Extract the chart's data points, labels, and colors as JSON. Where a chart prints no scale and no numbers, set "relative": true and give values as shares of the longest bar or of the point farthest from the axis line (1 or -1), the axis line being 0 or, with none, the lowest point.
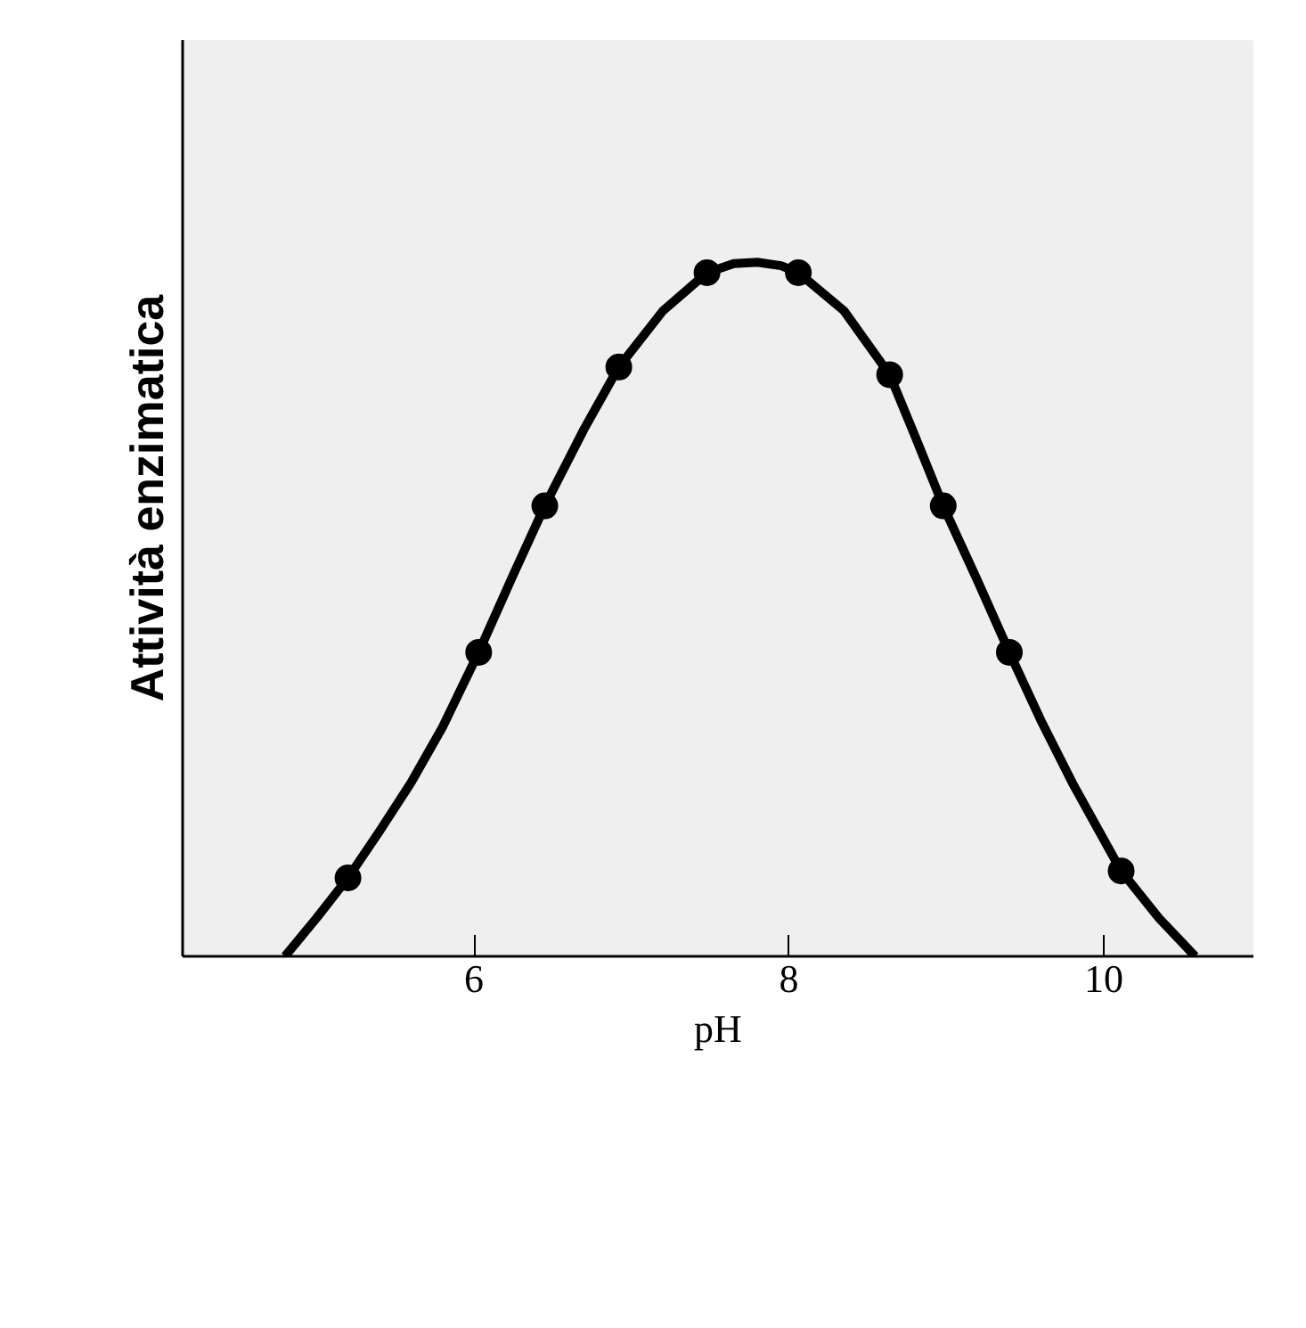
{
  "chart_data": {
    "type": "line",
    "relative": true,
    "xlabel": "pH",
    "ylabel": "Attività enzimatica",
    "xlim": [
      4.15,
      10.95
    ],
    "xticks": [
      6,
      8,
      10
    ],
    "tick_labels": "x",
    "grid": false,
    "series": [
      {
        "color": "#000000",
        "marker": "none",
        "x": [
          4.8,
          5.0,
          5.2,
          5.4,
          5.6,
          5.8,
          6.03,
          6.25,
          6.45,
          6.7,
          6.92,
          7.2,
          7.48,
          7.65,
          7.8,
          7.95,
          8.06,
          8.35,
          8.64,
          8.8,
          8.98,
          9.2,
          9.4,
          9.6,
          9.8,
          10.11,
          10.35,
          10.58
        ],
        "values": [
          0,
          0.055,
          0.113,
          0.18,
          0.25,
          0.33,
          0.438,
          0.55,
          0.649,
          0.76,
          0.849,
          0.93,
          0.985,
          0.998,
          1.0,
          0.995,
          0.985,
          0.93,
          0.838,
          0.75,
          0.649,
          0.54,
          0.438,
          0.34,
          0.25,
          0.123,
          0.055,
          0
        ]
      },
      {
        "type": "scatter",
        "color": "#000000",
        "marker": "circle",
        "x": [
          5.2,
          6.03,
          6.45,
          6.92,
          7.48,
          8.06,
          8.64,
          8.98,
          9.4,
          10.11
        ],
        "values": [
          0.113,
          0.438,
          0.649,
          0.849,
          0.985,
          0.985,
          0.838,
          0.649,
          0.438,
          0.123
        ]
      }
    ]
  }
}
